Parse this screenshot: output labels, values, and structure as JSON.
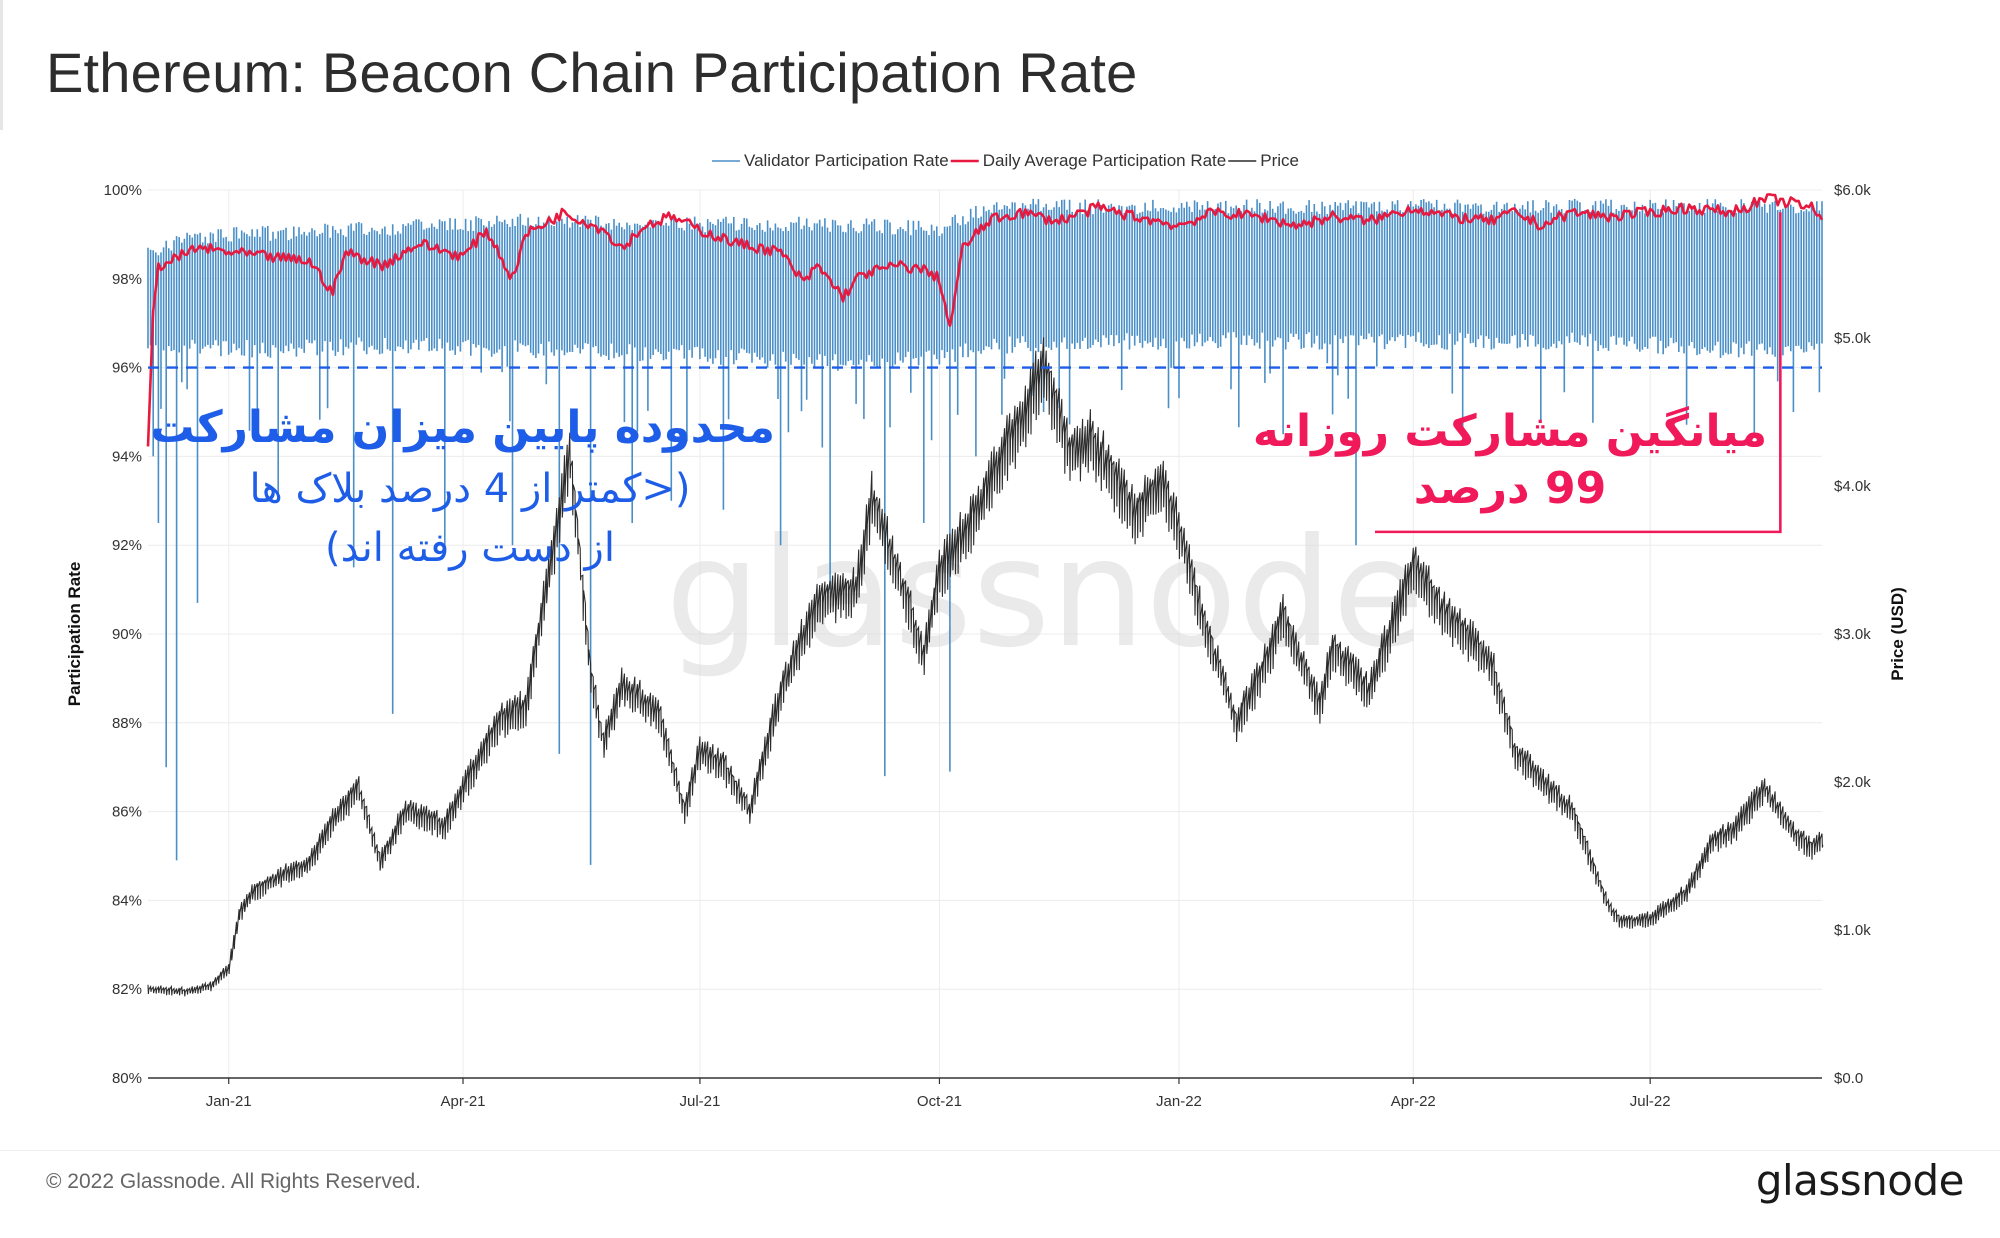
{
  "header": {
    "title": "Ethereum: Beacon Chain Participation Rate"
  },
  "footer": {
    "copyright": "© 2022 Glassnode. All Rights Reserved.",
    "brand": "glassnode"
  },
  "watermark": "glassnode",
  "annotations": {
    "low_line1": "محدوده پایین میزان مشارکت",
    "low_line2": "(<کمتر از 4 درصد بلاک ها",
    "low_line3": "از دست رفته اند)",
    "avg_line1": "میانگین مشارکت روزانه",
    "avg_line2": "99 درصد",
    "low_color": "#1d5de8",
    "avg_color": "#f0195a"
  },
  "chart_data": {
    "type": "line",
    "title": "Ethereum: Beacon Chain Participation Rate",
    "x_range": [
      "2020-12-01",
      "2022-09-05"
    ],
    "x_ticks": [
      {
        "date": "2021-01-01",
        "label": "Jan-21"
      },
      {
        "date": "2021-04-01",
        "label": "Apr-21"
      },
      {
        "date": "2021-07-01",
        "label": "Jul-21"
      },
      {
        "date": "2021-10-01",
        "label": "Oct-21"
      },
      {
        "date": "2022-01-01",
        "label": "Jan-22"
      },
      {
        "date": "2022-04-01",
        "label": "Apr-22"
      },
      {
        "date": "2022-07-01",
        "label": "Jul-22"
      }
    ],
    "y_left": {
      "label": "Participation Rate",
      "min": 80,
      "max": 100,
      "ticks": [
        80,
        82,
        84,
        86,
        88,
        90,
        92,
        94,
        96,
        98,
        100
      ],
      "tick_labels": [
        "80%",
        "82%",
        "84%",
        "86%",
        "88%",
        "90%",
        "92%",
        "94%",
        "96%",
        "98%",
        "100%"
      ]
    },
    "y_right": {
      "label": "Price (USD)",
      "min": 0,
      "max": 6000,
      "ticks": [
        0,
        1000,
        2000,
        3000,
        4000,
        5000,
        6000
      ],
      "tick_labels": [
        "$0.0",
        "$1.0k",
        "$2.0k",
        "$3.0k",
        "$4.0k",
        "$5.0k",
        "$6.0k"
      ]
    },
    "grid": true,
    "legend_position": "top-center",
    "threshold": {
      "value": 96,
      "style": "dashed",
      "color": "#1d5de8"
    },
    "series": [
      {
        "name": "Validator Participation Rate",
        "axis": "left",
        "color": "#4a8fc7",
        "band_typical": [
          [
            "2020-12-01",
            98.7,
            96.8
          ],
          [
            "2020-12-15",
            99.1,
            96.7
          ],
          [
            "2021-01-15",
            99.2,
            96.6
          ],
          [
            "2021-03-01",
            99.3,
            96.7
          ],
          [
            "2021-05-01",
            99.5,
            96.6
          ],
          [
            "2021-07-01",
            99.4,
            96.5
          ],
          [
            "2021-08-15",
            99.4,
            96.3
          ],
          [
            "2021-10-01",
            99.3,
            96.4
          ],
          [
            "2021-10-20",
            99.8,
            96.7
          ],
          [
            "2021-12-15",
            99.8,
            96.8
          ],
          [
            "2022-03-01",
            99.8,
            96.8
          ],
          [
            "2022-06-01",
            99.8,
            96.8
          ],
          [
            "2022-08-01",
            99.8,
            96.6
          ],
          [
            "2022-09-05",
            99.8,
            96.6
          ]
        ],
        "dips": [
          [
            "2020-12-03",
            94.0
          ],
          [
            "2020-12-05",
            92.5
          ],
          [
            "2020-12-08",
            87.0
          ],
          [
            "2020-12-12",
            84.9
          ],
          [
            "2020-12-20",
            90.7
          ],
          [
            "2021-01-20",
            93.0
          ],
          [
            "2021-02-18",
            91.5
          ],
          [
            "2021-03-05",
            88.2
          ],
          [
            "2021-03-25",
            92.0
          ],
          [
            "2021-04-20",
            92.0
          ],
          [
            "2021-05-08",
            87.3
          ],
          [
            "2021-05-20",
            84.8
          ],
          [
            "2021-06-05",
            92.5
          ],
          [
            "2021-06-20",
            93.0
          ],
          [
            "2021-07-10",
            92.8
          ],
          [
            "2021-08-01",
            92.0
          ],
          [
            "2021-08-20",
            91.0
          ],
          [
            "2021-09-10",
            86.8
          ],
          [
            "2021-09-25",
            92.5
          ],
          [
            "2021-10-05",
            86.9
          ],
          [
            "2021-10-15",
            94.0
          ],
          [
            "2021-11-10",
            95.0
          ],
          [
            "2022-02-10",
            94.5
          ],
          [
            "2022-03-10",
            92.0
          ],
          [
            "2022-04-20",
            94.5
          ],
          [
            "2022-05-20",
            94.8
          ],
          [
            "2022-08-10",
            94.5
          ],
          [
            "2022-08-25",
            95.0
          ]
        ]
      },
      {
        "name": "Daily Average Participation Rate",
        "axis": "left",
        "color": "#e8193f",
        "points": [
          [
            "2020-12-01",
            94.1
          ],
          [
            "2020-12-03",
            97.2
          ],
          [
            "2020-12-05",
            98.3
          ],
          [
            "2020-12-10",
            98.4
          ],
          [
            "2020-12-20",
            98.7
          ],
          [
            "2021-01-01",
            98.6
          ],
          [
            "2021-01-15",
            98.5
          ],
          [
            "2021-02-01",
            98.4
          ],
          [
            "2021-02-10",
            97.7
          ],
          [
            "2021-02-15",
            98.6
          ],
          [
            "2021-03-01",
            98.3
          ],
          [
            "2021-03-15",
            98.8
          ],
          [
            "2021-04-01",
            98.5
          ],
          [
            "2021-04-10",
            99.1
          ],
          [
            "2021-04-20",
            98.0
          ],
          [
            "2021-04-25",
            99.0
          ],
          [
            "2021-05-10",
            99.5
          ],
          [
            "2021-05-25",
            99.1
          ],
          [
            "2021-06-01",
            98.7
          ],
          [
            "2021-06-10",
            99.2
          ],
          [
            "2021-06-20",
            99.4
          ],
          [
            "2021-07-01",
            99.1
          ],
          [
            "2021-07-15",
            98.8
          ],
          [
            "2021-08-01",
            98.6
          ],
          [
            "2021-08-10",
            97.9
          ],
          [
            "2021-08-15",
            98.3
          ],
          [
            "2021-08-25",
            97.6
          ],
          [
            "2021-09-01",
            98.1
          ],
          [
            "2021-09-15",
            98.3
          ],
          [
            "2021-09-25",
            98.2
          ],
          [
            "2021-10-01",
            98.0
          ],
          [
            "2021-10-05",
            96.9
          ],
          [
            "2021-10-10",
            98.7
          ],
          [
            "2021-10-20",
            99.3
          ],
          [
            "2021-11-01",
            99.5
          ],
          [
            "2021-11-15",
            99.3
          ],
          [
            "2021-12-01",
            99.6
          ],
          [
            "2021-12-15",
            99.4
          ],
          [
            "2022-01-01",
            99.2
          ],
          [
            "2022-01-15",
            99.5
          ],
          [
            "2022-02-01",
            99.4
          ],
          [
            "2022-02-15",
            99.2
          ],
          [
            "2022-03-01",
            99.4
          ],
          [
            "2022-03-15",
            99.3
          ],
          [
            "2022-04-01",
            99.6
          ],
          [
            "2022-04-15",
            99.4
          ],
          [
            "2022-05-01",
            99.3
          ],
          [
            "2022-05-10",
            99.5
          ],
          [
            "2022-05-20",
            99.2
          ],
          [
            "2022-06-01",
            99.5
          ],
          [
            "2022-06-15",
            99.4
          ],
          [
            "2022-07-01",
            99.5
          ],
          [
            "2022-07-15",
            99.6
          ],
          [
            "2022-08-01",
            99.5
          ],
          [
            "2022-08-15",
            99.8
          ],
          [
            "2022-08-25",
            99.7
          ],
          [
            "2022-09-01",
            99.6
          ],
          [
            "2022-09-05",
            99.3
          ]
        ]
      },
      {
        "name": "Price",
        "axis": "right",
        "color": "#2b2b2b",
        "points": [
          [
            "2020-12-01",
            600
          ],
          [
            "2020-12-15",
            580
          ],
          [
            "2020-12-25",
            620
          ],
          [
            "2021-01-01",
            740
          ],
          [
            "2021-01-05",
            1100
          ],
          [
            "2021-01-10",
            1250
          ],
          [
            "2021-01-20",
            1350
          ],
          [
            "2021-02-01",
            1450
          ],
          [
            "2021-02-10",
            1750
          ],
          [
            "2021-02-20",
            1950
          ],
          [
            "2021-02-28",
            1450
          ],
          [
            "2021-03-10",
            1800
          ],
          [
            "2021-03-25",
            1700
          ],
          [
            "2021-04-01",
            1950
          ],
          [
            "2021-04-15",
            2400
          ],
          [
            "2021-04-25",
            2500
          ],
          [
            "2021-05-05",
            3500
          ],
          [
            "2021-05-12",
            4200
          ],
          [
            "2021-05-20",
            2700
          ],
          [
            "2021-05-25",
            2250
          ],
          [
            "2021-06-01",
            2650
          ],
          [
            "2021-06-15",
            2450
          ],
          [
            "2021-06-25",
            1800
          ],
          [
            "2021-07-01",
            2200
          ],
          [
            "2021-07-10",
            2100
          ],
          [
            "2021-07-20",
            1800
          ],
          [
            "2021-08-01",
            2600
          ],
          [
            "2021-08-15",
            3200
          ],
          [
            "2021-08-30",
            3300
          ],
          [
            "2021-09-05",
            3900
          ],
          [
            "2021-09-15",
            3400
          ],
          [
            "2021-09-25",
            2850
          ],
          [
            "2021-10-01",
            3400
          ],
          [
            "2021-10-15",
            3800
          ],
          [
            "2021-10-25",
            4200
          ],
          [
            "2021-11-01",
            4400
          ],
          [
            "2021-11-10",
            4800
          ],
          [
            "2021-11-20",
            4200
          ],
          [
            "2021-11-28",
            4300
          ],
          [
            "2021-12-05",
            4100
          ],
          [
            "2021-12-15",
            3800
          ],
          [
            "2021-12-25",
            4000
          ],
          [
            "2022-01-01",
            3700
          ],
          [
            "2022-01-10",
            3100
          ],
          [
            "2022-01-23",
            2400
          ],
          [
            "2022-02-01",
            2700
          ],
          [
            "2022-02-10",
            3100
          ],
          [
            "2022-02-24",
            2500
          ],
          [
            "2022-03-01",
            2900
          ],
          [
            "2022-03-15",
            2600
          ],
          [
            "2022-03-25",
            3100
          ],
          [
            "2022-04-01",
            3450
          ],
          [
            "2022-04-10",
            3200
          ],
          [
            "2022-04-20",
            3000
          ],
          [
            "2022-05-01",
            2800
          ],
          [
            "2022-05-10",
            2200
          ],
          [
            "2022-05-20",
            2000
          ],
          [
            "2022-06-01",
            1800
          ],
          [
            "2022-06-15",
            1150
          ],
          [
            "2022-06-20",
            1050
          ],
          [
            "2022-07-01",
            1070
          ],
          [
            "2022-07-15",
            1250
          ],
          [
            "2022-07-25",
            1600
          ],
          [
            "2022-08-01",
            1650
          ],
          [
            "2022-08-14",
            1950
          ],
          [
            "2022-08-25",
            1650
          ],
          [
            "2022-09-01",
            1550
          ],
          [
            "2022-09-05",
            1600
          ]
        ]
      }
    ]
  }
}
